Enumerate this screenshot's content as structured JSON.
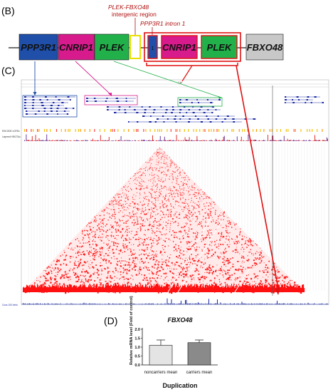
{
  "panels": {
    "b_label": "(B)",
    "c_label": "(C)",
    "d_label": "(D)"
  },
  "gene_map": {
    "annotation_title_line1": "PLEK-FBXO48",
    "annotation_title_line2": "intergenic region",
    "annotation_intron": "PPP3R1 intron 1",
    "genes": [
      {
        "label": "PPP3R1",
        "color": "#1f4fa8"
      },
      {
        "label": "CNRIP1",
        "color": "#d81b8c"
      },
      {
        "label": "PLEK",
        "color": "#22b04a"
      },
      {
        "label": "1",
        "color": "#1f4fa8"
      },
      {
        "label": "CNRIP1",
        "color": "#d81b8c"
      },
      {
        "label": "PLEK",
        "color": "#22b04a"
      },
      {
        "label": "FBXO48",
        "color": "#c8c8c8"
      }
    ],
    "highlight_color": "#e8e000",
    "duplication_color": "#e01010"
  },
  "browser": {
    "track_labels": [
      "ENCODE cCREs",
      "Layered H3K27Ac",
      "Cons 100 Verts"
    ],
    "scale_label": "1 kb",
    "tad_color": "#ff1a1a"
  },
  "chart_data": {
    "type": "bar",
    "title": "FBXO48",
    "ylabel": "Relative mRNA level (Fold of control)",
    "xlabel": "Duplication",
    "categories": [
      "noncarriers mean",
      "carriers mean"
    ],
    "values": [
      1.1,
      1.25
    ],
    "errors": [
      0.3,
      0.15
    ],
    "ylim": [
      0,
      2.0
    ],
    "yticks": [
      0.0,
      0.5,
      1.0,
      1.5,
      2.0
    ],
    "bar_colors": [
      "#e4e4e4",
      "#8a8a8a"
    ]
  }
}
